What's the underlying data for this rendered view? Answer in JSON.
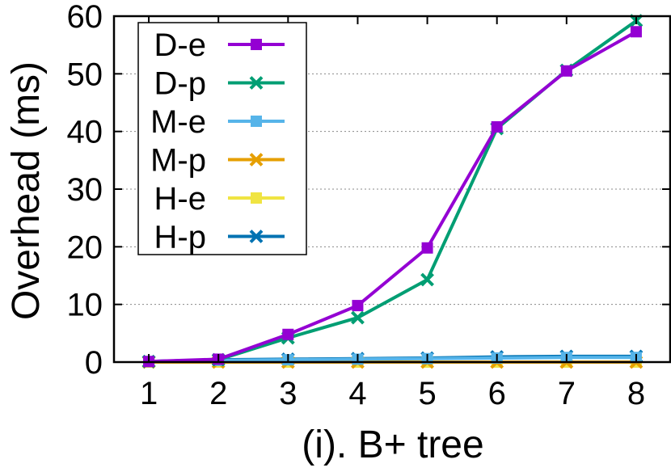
{
  "chart_data": {
    "type": "line",
    "title": "",
    "xlabel": "(i). B+ tree",
    "ylabel": "Overhead (ms)",
    "x": [
      1,
      2,
      3,
      4,
      5,
      6,
      7,
      8
    ],
    "xlim": [
      0.5,
      8.5
    ],
    "ylim": [
      0,
      60
    ],
    "yticks": [
      0,
      10,
      20,
      30,
      40,
      50,
      60
    ],
    "grid": "horizontal-dotted",
    "legend_position": "top-left",
    "series": [
      {
        "name": "D-e",
        "color": "#9400d3",
        "marker": "square",
        "values": [
          0.1,
          0.5,
          4.8,
          9.8,
          19.8,
          40.8,
          50.5,
          57.3
        ]
      },
      {
        "name": "D-p",
        "color": "#009e73",
        "marker": "cross",
        "values": [
          0.1,
          0.4,
          4.2,
          7.7,
          14.3,
          40.5,
          50.6,
          59.2
        ]
      },
      {
        "name": "M-e",
        "color": "#56b4e9",
        "marker": "square",
        "values": [
          0.1,
          0.3,
          0.4,
          0.5,
          0.6,
          0.7,
          0.8,
          0.8
        ]
      },
      {
        "name": "M-p",
        "color": "#e69f00",
        "marker": "cross",
        "values": [
          0.0,
          0.0,
          0.0,
          0.0,
          0.0,
          0.0,
          0.0,
          0.0
        ]
      },
      {
        "name": "H-e",
        "color": "#f0e442",
        "marker": "square",
        "values": [
          0.0,
          0.0,
          0.0,
          0.0,
          0.0,
          0.0,
          0.0,
          0.0
        ]
      },
      {
        "name": "H-p",
        "color": "#0072b2",
        "marker": "cross",
        "values": [
          0.1,
          0.4,
          0.5,
          0.6,
          0.7,
          0.9,
          1.0,
          1.0
        ]
      }
    ]
  }
}
